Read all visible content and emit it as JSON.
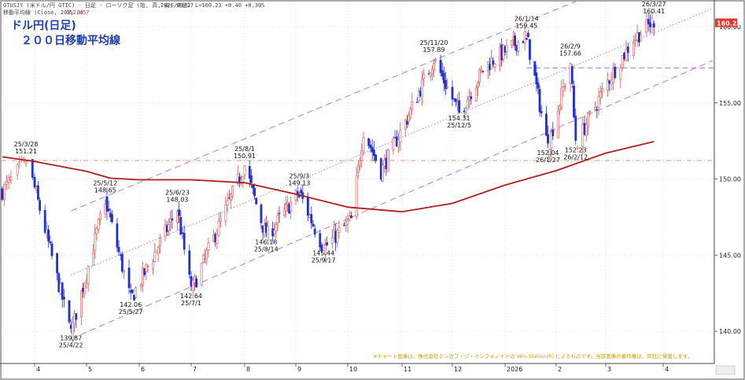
{
  "header": {
    "line1_symbol": "GTUSJY (米ドル/円 GTIC) - 日足 - ローソク足 (始, 高, 安, 終値)",
    "line1_date": "2026/03/27",
    "line1_values": "L=160.23 +0.40 +0.30%",
    "line2_label": "移動平均線 (Close, 200, 0)",
    "line2_value": "152.457"
  },
  "title": {
    "line1": "ドル円(日足)",
    "line2": "２００日移動平均線"
  },
  "footer_note": "※チャート画像は、株式会社ミンカブ・ジ・インフォノイドの Win-Station(R) によるものです。当該画像の著作権は、同社に帰属します。",
  "current_price_label": "160.23",
  "colors": {
    "up": "#d9534f",
    "down": "#1f2fd1",
    "ma": "#b01e1e",
    "channel": "#b070d0",
    "hline": "#d08a6a",
    "title": "#1f3fb0",
    "current_box": "#e03a2a"
  },
  "chart_data": {
    "type": "candlestick",
    "x_axis": {
      "labels": [
        "4",
        "5",
        "6",
        "7",
        "8",
        "9",
        "10",
        "11",
        "12",
        "2026",
        "2",
        "3",
        "4"
      ],
      "label_dates": [
        "2025-04-01",
        "2025-05-01",
        "2025-06-01",
        "2025-07-01",
        "2025-08-01",
        "2025-09-01",
        "2025-10-01",
        "2025-11-01",
        "2025-12-01",
        "2026-01-01",
        "2026-02-01",
        "2026-03-01",
        "2026-04-01"
      ]
    },
    "y_axis": {
      "ticks": [
        "140.00",
        "145.00",
        "150.00",
        "155.00",
        "160.00"
      ],
      "range": [
        138.7,
        161.8
      ]
    },
    "candles_overall_range": {
      "start": "2025-03-17",
      "end": "2026-03-27"
    },
    "series": [
      {
        "name": "移動平均線 (Close, 200, 0)",
        "kind": "moving-average",
        "points": [
          [
            "2025-03-17",
            151.45
          ],
          [
            "2025-04-01",
            151.15
          ],
          [
            "2025-05-01",
            150.5
          ],
          [
            "2025-05-15",
            150.05
          ],
          [
            "2025-06-01",
            149.95
          ],
          [
            "2025-07-01",
            149.95
          ],
          [
            "2025-08-01",
            149.75
          ],
          [
            "2025-09-01",
            149.0
          ],
          [
            "2025-10-01",
            148.15
          ],
          [
            "2025-11-01",
            147.85
          ],
          [
            "2025-12-01",
            148.4
          ],
          [
            "2026-01-01",
            149.6
          ],
          [
            "2026-02-01",
            150.55
          ],
          [
            "2026-03-01",
            151.7
          ],
          [
            "2026-03-27",
            152.457
          ]
        ]
      }
    ],
    "anchors": [
      {
        "label": "25/3/28",
        "value": "151.21",
        "date": "2025-03-28",
        "price": 151.21,
        "kind": "high"
      },
      {
        "label": "25/4/22",
        "value": "139.87",
        "date": "2025-04-22",
        "price": 139.87,
        "kind": "low"
      },
      {
        "label": "25/5/12",
        "value": "148.65",
        "date": "2025-05-12",
        "price": 148.65,
        "kind": "high"
      },
      {
        "label": "25/5/27",
        "value": "142.06",
        "date": "2025-05-27",
        "price": 142.06,
        "kind": "low"
      },
      {
        "label": "25/6/23",
        "value": "148.03",
        "date": "2025-06-23",
        "price": 148.03,
        "kind": "high"
      },
      {
        "label": "25/7/1",
        "value": "142.64",
        "date": "2025-07-01",
        "price": 142.64,
        "kind": "low"
      },
      {
        "label": "25/8/1",
        "value": "150.91",
        "date": "2025-08-01",
        "price": 150.91,
        "kind": "high"
      },
      {
        "label": "25/8/14",
        "value": "146.18",
        "date": "2025-08-14",
        "price": 146.18,
        "kind": "low"
      },
      {
        "label": "25/9/3",
        "value": "149.13",
        "date": "2025-09-03",
        "price": 149.13,
        "kind": "high"
      },
      {
        "label": "25/9/17",
        "value": "145.44",
        "date": "2025-09-17",
        "price": 145.44,
        "kind": "low"
      },
      {
        "label": "25/11/20",
        "value": "157.89",
        "date": "2025-11-20",
        "price": 157.89,
        "kind": "high"
      },
      {
        "label": "25/12/5",
        "value": "154.31",
        "date": "2025-12-05",
        "price": 154.31,
        "kind": "low"
      },
      {
        "label": "26/1/14",
        "value": "159.45",
        "date": "2026-01-14",
        "price": 159.45,
        "kind": "high"
      },
      {
        "label": "26/1/27",
        "value": "152.04",
        "date": "2026-01-27",
        "price": 152.04,
        "kind": "low"
      },
      {
        "label": "26/2/9",
        "value": "157.66",
        "date": "2026-02-09",
        "price": 157.66,
        "kind": "high"
      },
      {
        "label": "26/2/12",
        "value": "152.23",
        "date": "2026-02-12",
        "price": 152.23,
        "kind": "low"
      },
      {
        "label": "26/3/27",
        "value": "160.41",
        "date": "2026-03-27",
        "price": 160.41,
        "kind": "high"
      }
    ],
    "horizontal_lines": [
      {
        "price": 151.21,
        "style": "dash-dot",
        "color": "#d08a6a"
      },
      {
        "price": 157.3,
        "style": "dash",
        "color": "#b070d0",
        "from": "2026-01-14"
      }
    ],
    "channel_lines": [
      {
        "style": "dash",
        "from": [
          "2025-04-22",
          139.5
        ],
        "to": [
          "2026-03-27",
          156.1
        ]
      },
      {
        "style": "dot",
        "from": [
          "2025-04-22",
          143.7
        ],
        "to": [
          "2026-03-27",
          159.6
        ]
      },
      {
        "style": "dash",
        "from": [
          "2025-04-22",
          147.9
        ],
        "to": [
          "2026-03-27",
          163.8
        ]
      }
    ],
    "legend": "none",
    "grid": "dotted"
  }
}
